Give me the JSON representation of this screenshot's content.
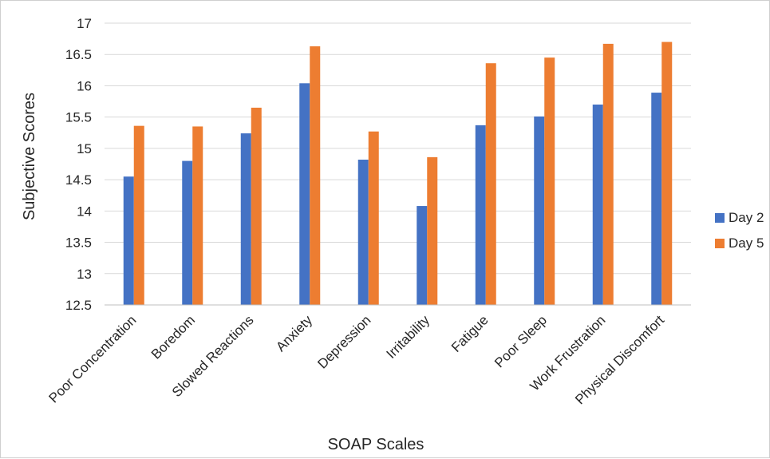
{
  "chart_data": {
    "type": "bar",
    "title": "",
    "xlabel": "SOAP Scales",
    "ylabel": "Subjective Scores",
    "ylim": [
      12.5,
      17
    ],
    "yticks": [
      "12.5",
      "13",
      "13.5",
      "14",
      "14.5",
      "15",
      "15.5",
      "16",
      "16.5",
      "17"
    ],
    "categories": [
      "Poor Concentration",
      "Boredom",
      "Slowed Reactions",
      "Anxiety",
      "Depression",
      "Irritability",
      "Fatigue",
      "Poor Sleep",
      "Work Frustration",
      "Physical Discomfort"
    ],
    "series": [
      {
        "name": "Day 2",
        "color": "#4472c4",
        "values": [
          14.55,
          14.8,
          15.24,
          16.04,
          14.82,
          14.08,
          15.37,
          15.51,
          15.7,
          15.89
        ]
      },
      {
        "name": "Day 5",
        "color": "#ed7d31",
        "values": [
          15.36,
          15.35,
          15.65,
          16.63,
          15.27,
          14.86,
          16.36,
          16.45,
          16.67,
          16.7
        ]
      }
    ],
    "grid": true,
    "legend_position": "right"
  }
}
